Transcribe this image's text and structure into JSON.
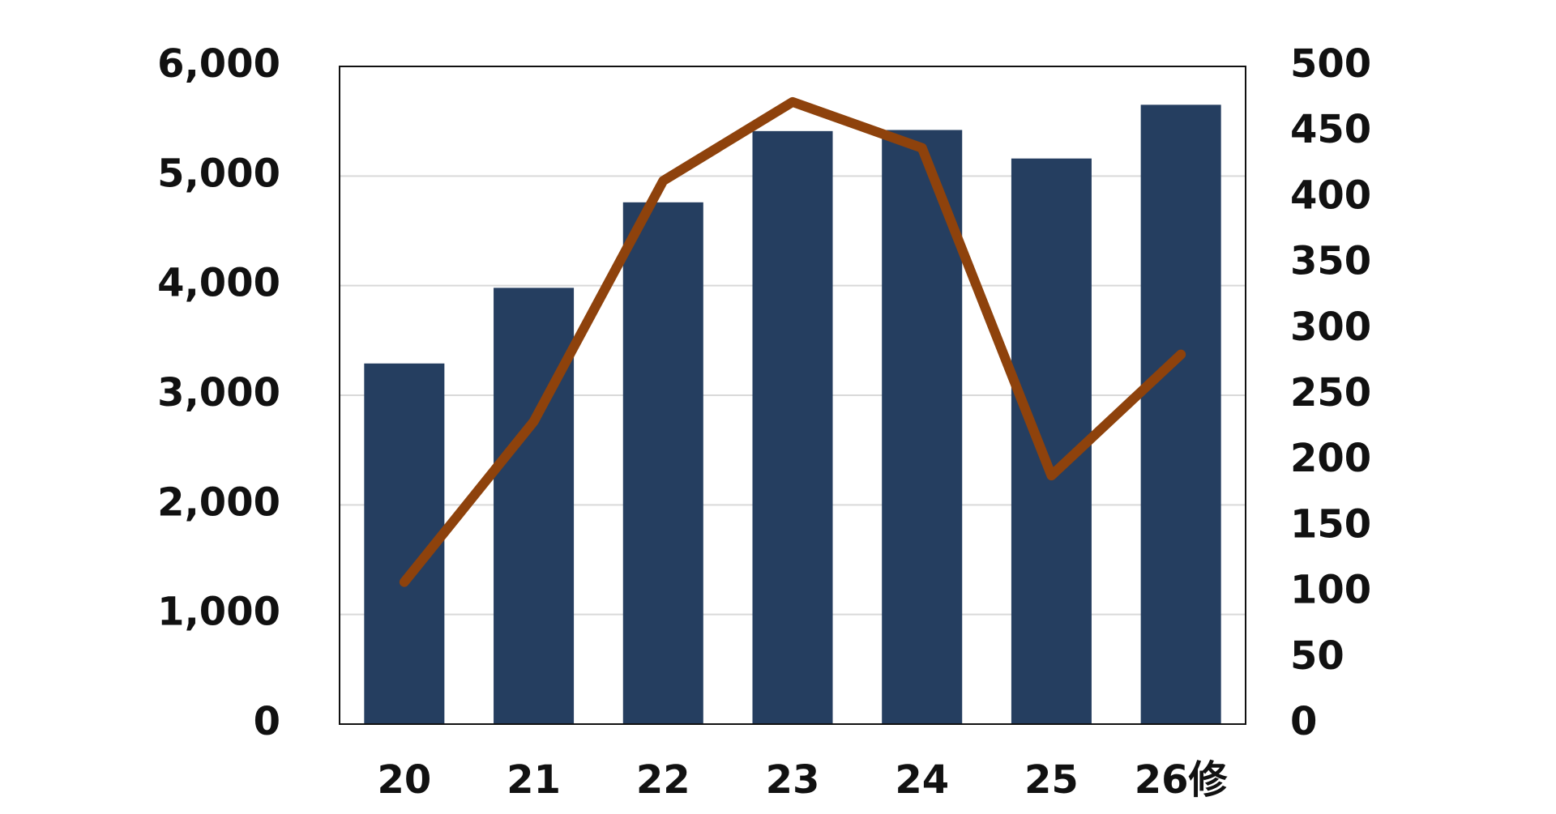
{
  "chart_data": {
    "type": "bar-line",
    "categories": [
      "20",
      "21",
      "22",
      "23",
      "24",
      "25",
      "26修"
    ],
    "series": [
      {
        "type": "bar",
        "color": "#253e60",
        "values": [
          3290,
          3980,
          4760,
          5410,
          5420,
          5160,
          5650
        ]
      },
      {
        "type": "line",
        "color": "#8e420c",
        "axis": "y2",
        "values": [
          108,
          230,
          413,
          473,
          438,
          189,
          281
        ]
      }
    ],
    "ylim": [
      0,
      6000
    ],
    "yticks": [
      0,
      {
        "value": 1000,
        "label": "1,000"
      },
      {
        "value": 2000,
        "label": "2,000"
      },
      {
        "value": 3000,
        "label": "3,000"
      },
      {
        "value": 4000,
        "label": "4,000"
      },
      {
        "value": 5000,
        "label": "5,000"
      },
      {
        "value": 6000,
        "label": "6,000"
      }
    ],
    "y2lim": [
      0,
      500
    ],
    "y2ticks": [
      0,
      50,
      100,
      150,
      200,
      250,
      300,
      350,
      400,
      450,
      500
    ],
    "grid": true
  }
}
